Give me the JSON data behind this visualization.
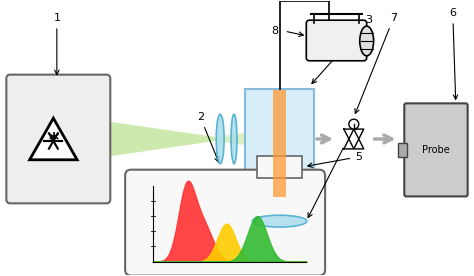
{
  "fig_width": 4.74,
  "fig_height": 2.76,
  "dpi": 100,
  "bg_color": "#ffffff"
}
